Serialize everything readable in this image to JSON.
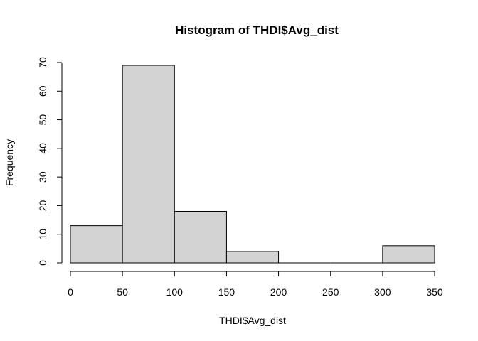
{
  "chart_data": {
    "type": "bar",
    "title": "Histogram of THDI$Avg_dist",
    "xlabel": "THDI$Avg_dist",
    "ylabel": "Frequency",
    "bins": [
      {
        "start": 0,
        "end": 50,
        "count": 13
      },
      {
        "start": 50,
        "end": 100,
        "count": 69
      },
      {
        "start": 100,
        "end": 150,
        "count": 18
      },
      {
        "start": 150,
        "end": 200,
        "count": 4
      },
      {
        "start": 200,
        "end": 250,
        "count": 0
      },
      {
        "start": 250,
        "end": 300,
        "count": 0
      },
      {
        "start": 300,
        "end": 350,
        "count": 6
      }
    ],
    "xlim": [
      0,
      350
    ],
    "ylim": [
      0,
      70
    ],
    "x_ticks": [
      0,
      50,
      100,
      150,
      200,
      250,
      300,
      350
    ],
    "y_ticks": [
      0,
      10,
      20,
      30,
      40,
      50,
      60,
      70
    ],
    "bar_color": "#d3d3d3",
    "border_color": "#000000",
    "grid": false
  }
}
